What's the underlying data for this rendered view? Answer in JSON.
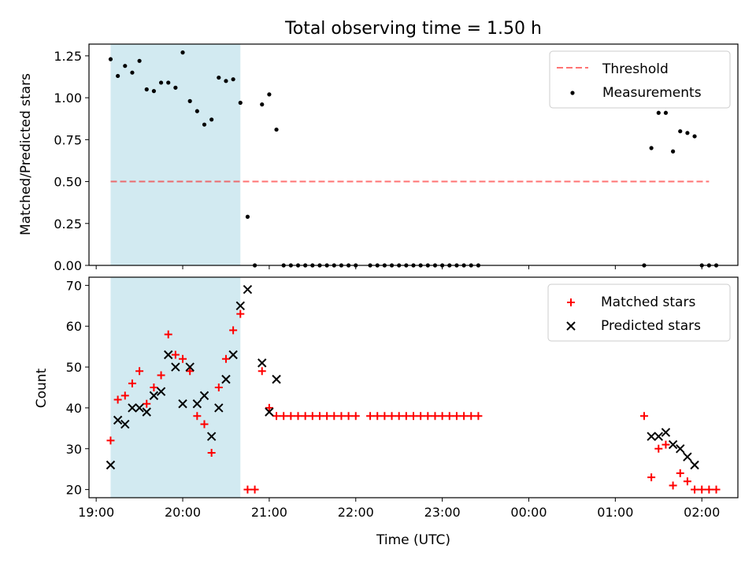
{
  "title": "Total observing time = 1.50 h",
  "colors": {
    "shade": "#add8e6",
    "threshold": "#ff0000",
    "matched": "#ff0000",
    "predicted": "#000000",
    "measurement": "#000000"
  },
  "chart_data": [
    {
      "type": "scatter",
      "panel": "top",
      "ylabel": "Matched/Predicted stars",
      "xlabel": "",
      "ylim": [
        0,
        1.32
      ],
      "yticks": [
        0.0,
        0.25,
        0.5,
        0.75,
        1.0,
        1.25
      ],
      "ytick_labels": [
        "0.00",
        "0.25",
        "0.50",
        "0.75",
        "1.00",
        "1.25"
      ],
      "shaded_span": [
        "19:10",
        "20:40"
      ],
      "legend_position": "upper right",
      "legend": [
        "Threshold",
        "Measurements"
      ],
      "threshold": {
        "name": "Threshold",
        "y": 0.5,
        "x_range": [
          "19:10",
          "02:05"
        ],
        "style": "dashed"
      },
      "series": [
        {
          "name": "Measurements",
          "marker": "dot",
          "points": [
            [
              "19:10",
              1.23
            ],
            [
              "19:15",
              1.13
            ],
            [
              "19:20",
              1.19
            ],
            [
              "19:25",
              1.15
            ],
            [
              "19:30",
              1.22
            ],
            [
              "19:35",
              1.05
            ],
            [
              "19:40",
              1.04
            ],
            [
              "19:45",
              1.09
            ],
            [
              "19:50",
              1.09
            ],
            [
              "19:55",
              1.06
            ],
            [
              "20:00",
              1.27
            ],
            [
              "20:05",
              0.98
            ],
            [
              "20:10",
              0.92
            ],
            [
              "20:15",
              0.84
            ],
            [
              "20:20",
              0.87
            ],
            [
              "20:25",
              1.12
            ],
            [
              "20:30",
              1.1
            ],
            [
              "20:35",
              1.11
            ],
            [
              "20:40",
              0.97
            ],
            [
              "20:45",
              0.29
            ],
            [
              "20:50",
              0.0
            ],
            [
              "20:55",
              0.96
            ],
            [
              "21:00",
              1.02
            ],
            [
              "21:05",
              0.81
            ],
            [
              "21:10",
              0.0
            ],
            [
              "21:15",
              0.0
            ],
            [
              "21:20",
              0.0
            ],
            [
              "21:25",
              0.0
            ],
            [
              "21:30",
              0.0
            ],
            [
              "21:35",
              0.0
            ],
            [
              "21:40",
              0.0
            ],
            [
              "21:45",
              0.0
            ],
            [
              "21:50",
              0.0
            ],
            [
              "21:55",
              0.0
            ],
            [
              "22:00",
              0.0
            ],
            [
              "22:10",
              0.0
            ],
            [
              "22:15",
              0.0
            ],
            [
              "22:20",
              0.0
            ],
            [
              "22:25",
              0.0
            ],
            [
              "22:30",
              0.0
            ],
            [
              "22:35",
              0.0
            ],
            [
              "22:40",
              0.0
            ],
            [
              "22:45",
              0.0
            ],
            [
              "22:50",
              0.0
            ],
            [
              "22:55",
              0.0
            ],
            [
              "23:00",
              0.0
            ],
            [
              "23:05",
              0.0
            ],
            [
              "23:10",
              0.0
            ],
            [
              "23:15",
              0.0
            ],
            [
              "23:20",
              0.0
            ],
            [
              "23:25",
              0.0
            ],
            [
              "01:20",
              0.0
            ],
            [
              "01:25",
              0.7
            ],
            [
              "01:30",
              0.91
            ],
            [
              "01:35",
              0.91
            ],
            [
              "01:40",
              0.68
            ],
            [
              "01:45",
              0.8
            ],
            [
              "01:50",
              0.79
            ],
            [
              "01:55",
              0.77
            ],
            [
              "02:00",
              0.0
            ],
            [
              "02:05",
              0.0
            ],
            [
              "02:10",
              0.0
            ]
          ]
        }
      ]
    },
    {
      "type": "scatter",
      "panel": "bottom",
      "ylabel": "Count",
      "xlabel": "Time (UTC)",
      "ylim": [
        18,
        72
      ],
      "yticks": [
        20,
        30,
        40,
        50,
        60,
        70
      ],
      "ytick_labels": [
        "20",
        "30",
        "40",
        "50",
        "60",
        "70"
      ],
      "xlim": [
        "18:55",
        "02:25"
      ],
      "xticks": [
        "19:00",
        "20:00",
        "21:00",
        "22:00",
        "23:00",
        "00:00",
        "01:00",
        "02:00"
      ],
      "shaded_span": [
        "19:10",
        "20:40"
      ],
      "legend_position": "upper right",
      "legend": [
        "Matched stars",
        "Predicted stars"
      ],
      "series": [
        {
          "name": "Matched stars",
          "marker": "plus",
          "points": [
            [
              "19:10",
              32
            ],
            [
              "19:15",
              42
            ],
            [
              "19:20",
              43
            ],
            [
              "19:25",
              46
            ],
            [
              "19:30",
              49
            ],
            [
              "19:35",
              41
            ],
            [
              "19:40",
              45
            ],
            [
              "19:45",
              48
            ],
            [
              "19:50",
              58
            ],
            [
              "19:55",
              53
            ],
            [
              "20:00",
              52
            ],
            [
              "20:05",
              49
            ],
            [
              "20:10",
              38
            ],
            [
              "20:15",
              36
            ],
            [
              "20:20",
              29
            ],
            [
              "20:25",
              45
            ],
            [
              "20:30",
              52
            ],
            [
              "20:35",
              59
            ],
            [
              "20:40",
              63
            ],
            [
              "20:45",
              20
            ],
            [
              "20:50",
              20
            ],
            [
              "20:55",
              49
            ],
            [
              "21:00",
              40
            ],
            [
              "21:05",
              38
            ],
            [
              "21:10",
              38
            ],
            [
              "21:15",
              38
            ],
            [
              "21:20",
              38
            ],
            [
              "21:25",
              38
            ],
            [
              "21:30",
              38
            ],
            [
              "21:35",
              38
            ],
            [
              "21:40",
              38
            ],
            [
              "21:45",
              38
            ],
            [
              "21:50",
              38
            ],
            [
              "21:55",
              38
            ],
            [
              "22:00",
              38
            ],
            [
              "22:10",
              38
            ],
            [
              "22:15",
              38
            ],
            [
              "22:20",
              38
            ],
            [
              "22:25",
              38
            ],
            [
              "22:30",
              38
            ],
            [
              "22:35",
              38
            ],
            [
              "22:40",
              38
            ],
            [
              "22:45",
              38
            ],
            [
              "22:50",
              38
            ],
            [
              "22:55",
              38
            ],
            [
              "23:00",
              38
            ],
            [
              "23:05",
              38
            ],
            [
              "23:10",
              38
            ],
            [
              "23:15",
              38
            ],
            [
              "23:20",
              38
            ],
            [
              "23:25",
              38
            ],
            [
              "01:20",
              38
            ],
            [
              "01:25",
              23
            ],
            [
              "01:30",
              30
            ],
            [
              "01:35",
              31
            ],
            [
              "01:40",
              21
            ],
            [
              "01:45",
              24
            ],
            [
              "01:50",
              22
            ],
            [
              "01:55",
              20
            ],
            [
              "02:00",
              20
            ],
            [
              "02:05",
              20
            ],
            [
              "02:10",
              20
            ]
          ]
        },
        {
          "name": "Predicted stars",
          "marker": "x",
          "points": [
            [
              "19:10",
              26
            ],
            [
              "19:15",
              37
            ],
            [
              "19:20",
              36
            ],
            [
              "19:25",
              40
            ],
            [
              "19:30",
              40
            ],
            [
              "19:35",
              39
            ],
            [
              "19:40",
              43
            ],
            [
              "19:45",
              44
            ],
            [
              "19:50",
              53
            ],
            [
              "19:55",
              50
            ],
            [
              "20:00",
              41
            ],
            [
              "20:05",
              50
            ],
            [
              "20:10",
              41
            ],
            [
              "20:15",
              43
            ],
            [
              "20:20",
              33
            ],
            [
              "20:25",
              40
            ],
            [
              "20:30",
              47
            ],
            [
              "20:35",
              53
            ],
            [
              "20:40",
              65
            ],
            [
              "20:45",
              69
            ],
            [
              "20:55",
              51
            ],
            [
              "21:00",
              39
            ],
            [
              "21:05",
              47
            ],
            [
              "01:25",
              33
            ],
            [
              "01:30",
              33
            ],
            [
              "01:35",
              34
            ],
            [
              "01:40",
              31
            ],
            [
              "01:45",
              30
            ],
            [
              "01:50",
              28
            ],
            [
              "01:55",
              26
            ]
          ]
        }
      ]
    }
  ]
}
